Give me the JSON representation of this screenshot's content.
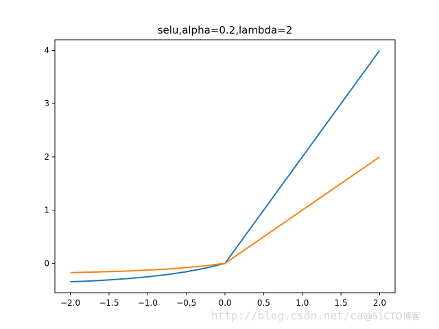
{
  "chart_data": {
    "type": "line",
    "title": "selu,alpha=0.2,lambda=2",
    "xlabel": "",
    "ylabel": "",
    "xlim": [
      -2.2,
      2.2
    ],
    "ylim": [
      -0.55,
      4.2
    ],
    "grid": false,
    "x_ticks": [
      -2.0,
      -1.5,
      -1.0,
      -0.5,
      0.0,
      0.5,
      1.0,
      1.5,
      2.0
    ],
    "x_tick_labels": [
      "−2.0",
      "−1.5",
      "−1.0",
      "−0.5",
      "0.0",
      "0.5",
      "1.0",
      "1.5",
      "2.0"
    ],
    "y_ticks": [
      0,
      1,
      2,
      3,
      4
    ],
    "y_tick_labels": [
      "0",
      "1",
      "2",
      "3",
      "4"
    ],
    "x": [
      -2.0,
      -1.75,
      -1.5,
      -1.25,
      -1.0,
      -0.75,
      -0.5,
      -0.25,
      0.0,
      0.5,
      1.0,
      1.5,
      2.0
    ],
    "series": [
      {
        "color": "#1f77b4",
        "values": [
          -0.346,
          -0.331,
          -0.311,
          -0.285,
          -0.253,
          -0.211,
          -0.157,
          -0.088,
          0.0,
          1.0,
          2.0,
          3.0,
          4.0
        ]
      },
      {
        "color": "#ff7f0e",
        "values": [
          -0.173,
          -0.165,
          -0.155,
          -0.143,
          -0.126,
          -0.106,
          -0.079,
          -0.044,
          0.0,
          0.5,
          1.0,
          1.5,
          2.0
        ]
      }
    ]
  },
  "watermark": {
    "url_text": "http://blog.csdn.net/ca",
    "site_text": "@51CTO博客"
  }
}
